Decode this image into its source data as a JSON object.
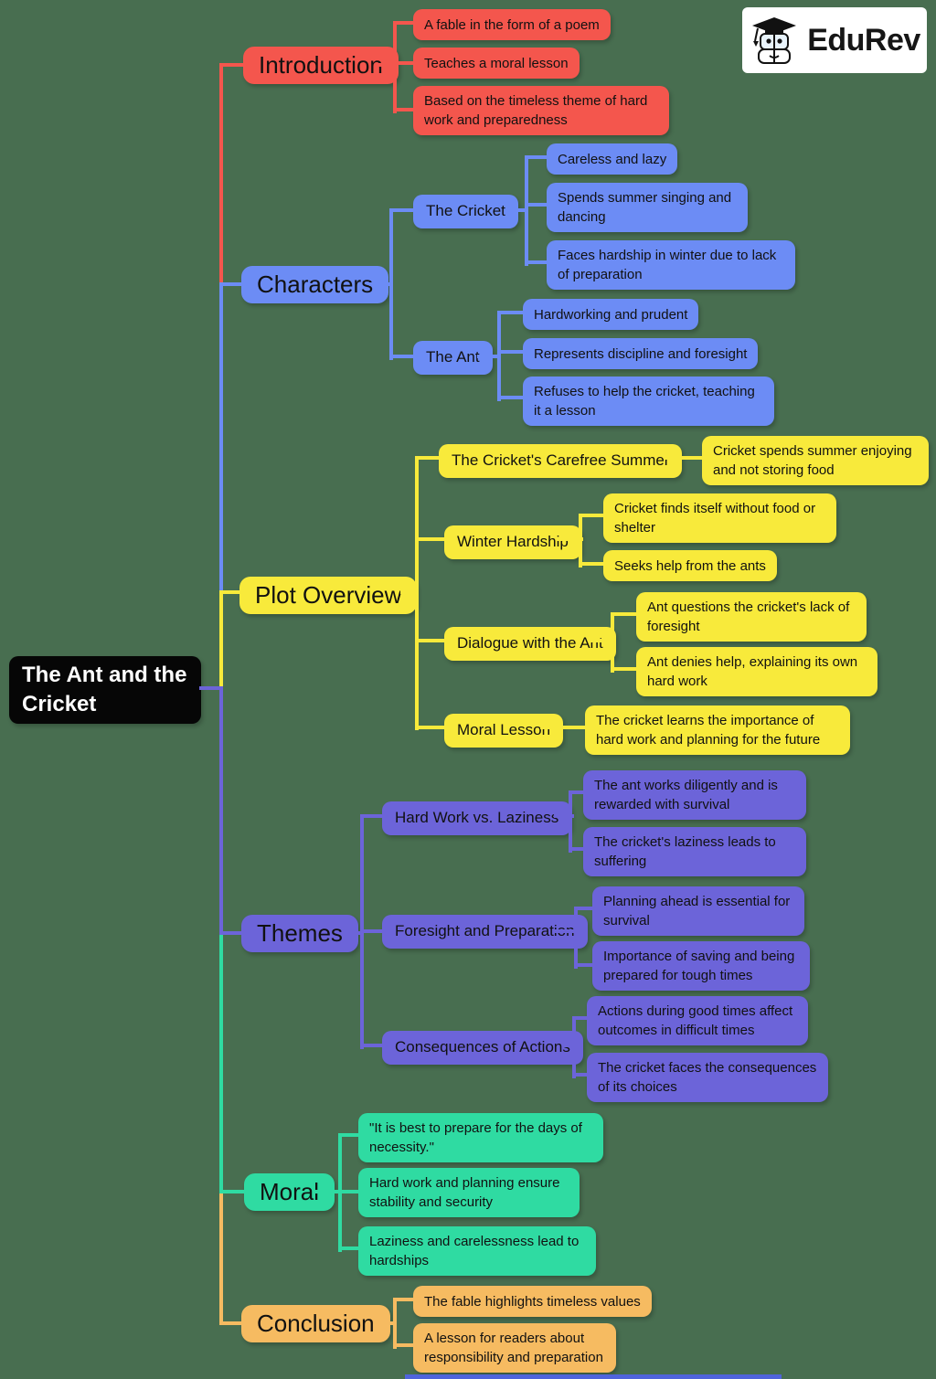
{
  "background_color": "#486E50",
  "footer_bar_color": "#5064DC",
  "logo": {
    "text": "EduRev"
  },
  "root": {
    "label": "The Ant and the Cricket",
    "bg": "#060606",
    "fg": "#ffffff"
  },
  "branches": [
    {
      "label": "Introduction",
      "color": "#F4564D",
      "children": [
        {
          "label": "A fable in the form of a poem"
        },
        {
          "label": "Teaches a moral lesson"
        },
        {
          "label": "Based on the timeless theme of hard work and preparedness"
        }
      ]
    },
    {
      "label": "Characters",
      "color": "#6C8CF5",
      "children": [
        {
          "label": "The Cricket",
          "children": [
            {
              "label": "Careless and lazy"
            },
            {
              "label": "Spends summer singing and dancing"
            },
            {
              "label": "Faces hardship in winter due to lack of preparation"
            }
          ]
        },
        {
          "label": "The Ant",
          "children": [
            {
              "label": "Hardworking and prudent"
            },
            {
              "label": "Represents discipline and foresight"
            },
            {
              "label": "Refuses to help the cricket, teaching it a lesson"
            }
          ]
        }
      ]
    },
    {
      "label": "Plot Overview",
      "color": "#F8EA3B",
      "children": [
        {
          "label": "The Cricket's Carefree Summer",
          "children": [
            {
              "label": "Cricket spends summer enjoying and not storing food"
            }
          ]
        },
        {
          "label": "Winter Hardship",
          "children": [
            {
              "label": "Cricket finds itself without food or shelter"
            },
            {
              "label": "Seeks help from the ants"
            }
          ]
        },
        {
          "label": "Dialogue with the Ant",
          "children": [
            {
              "label": "Ant questions the cricket's lack of foresight"
            },
            {
              "label": "Ant denies help, explaining its own hard work"
            }
          ]
        },
        {
          "label": "Moral Lesson",
          "children": [
            {
              "label": "The cricket learns the importance of hard work and planning for the future"
            }
          ]
        }
      ]
    },
    {
      "label": "Themes",
      "color": "#6C64D9",
      "children": [
        {
          "label": "Hard Work vs. Laziness",
          "children": [
            {
              "label": "The ant works diligently and is rewarded with survival"
            },
            {
              "label": "The cricket's laziness leads to suffering"
            }
          ]
        },
        {
          "label": "Foresight and Preparation",
          "children": [
            {
              "label": "Planning ahead is essential for survival"
            },
            {
              "label": "Importance of saving and being prepared for tough times"
            }
          ]
        },
        {
          "label": "Consequences of Actions",
          "children": [
            {
              "label": "Actions during good times affect outcomes in difficult times"
            },
            {
              "label": "The cricket faces the consequences of its choices"
            }
          ]
        }
      ]
    },
    {
      "label": "Moral",
      "color": "#2FDBA2",
      "children": [
        {
          "label": "\"It is best to prepare for the days of necessity.\""
        },
        {
          "label": "Hard work and planning ensure stability and security"
        },
        {
          "label": "Laziness and carelessness lead to hardships"
        }
      ]
    },
    {
      "label": "Conclusion",
      "color": "#F6BB61",
      "children": [
        {
          "label": "The fable highlights timeless values"
        },
        {
          "label": "A lesson for readers about responsibility and preparation"
        }
      ]
    }
  ]
}
